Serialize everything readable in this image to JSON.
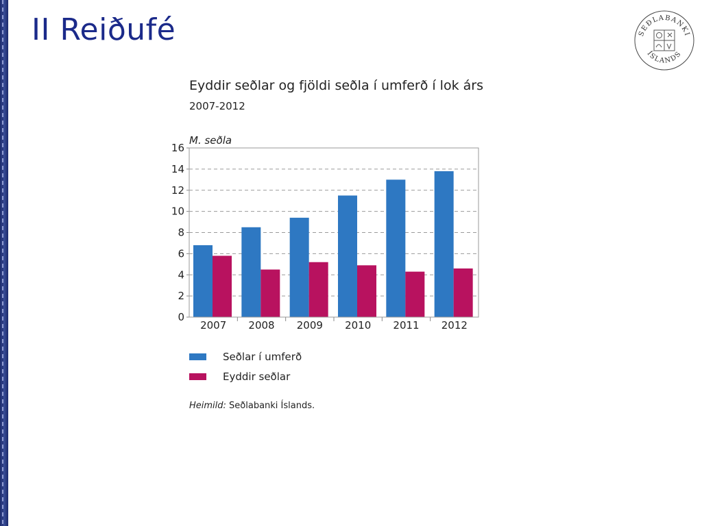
{
  "slide": {
    "title": "II Reiðufé"
  },
  "logo": {
    "text_top": "SEÐLABANKI",
    "text_bottom": "ÍSLANDS"
  },
  "colors": {
    "series1": "#2e78c2",
    "series2": "#b8125f",
    "title": "#1b2a8a"
  },
  "chart_data": {
    "type": "bar",
    "title": "Eyddir seðlar og fjöldi seðla í umferð í lok árs",
    "subtitle": "2007-2012",
    "ylabel": "M. seðla",
    "xlabel": "",
    "categories": [
      "2007",
      "2008",
      "2009",
      "2010",
      "2011",
      "2012"
    ],
    "series": [
      {
        "name": "Seðlar í umferð",
        "values": [
          6.8,
          8.5,
          9.4,
          11.5,
          13.0,
          13.8
        ]
      },
      {
        "name": "Eyddir seðlar",
        "values": [
          5.8,
          4.5,
          5.2,
          4.9,
          4.3,
          4.6
        ]
      }
    ],
    "ylim": [
      0,
      16
    ],
    "yticks": [
      "0",
      "2",
      "4",
      "6",
      "8",
      "10",
      "12",
      "14",
      "16"
    ],
    "grid": true,
    "legend": "bottom-left"
  },
  "source": {
    "label": "Heimild:",
    "text": " Seðlabanki Íslands."
  }
}
